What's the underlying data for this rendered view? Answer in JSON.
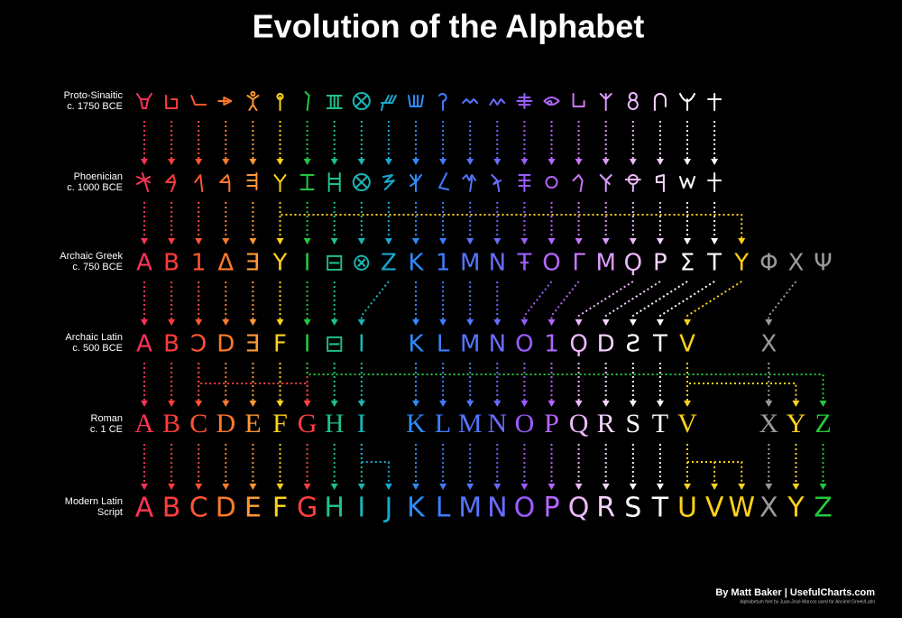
{
  "header": {
    "title": "Evolution of the Alphabet"
  },
  "rows": [
    {
      "label": [
        "Proto-Sinaitic",
        "c. 1750 BCE"
      ],
      "colors": [
        "#ff3355",
        "#ff3c3c",
        "#ff5533",
        "#ff7a2a",
        "#ff9933",
        "#ffd21a",
        "#22c83c",
        "#1fbf8f",
        "#1cb5b5",
        "#19a8cf",
        "#2f8cff",
        "#3f7cff",
        "#5575ff",
        "#6a6cff",
        "#9a5cff",
        "#b466ff",
        "#cc77ff",
        "#dd99ff",
        "#eeb8ff",
        "#f5d5ff",
        "#ffffff",
        "#ffffff"
      ]
    },
    {
      "label": [
        "Phoenician",
        "c. 1000 BCE"
      ],
      "colors": [
        "#ff3355",
        "#ff3c3c",
        "#ff5533",
        "#ff7a2a",
        "#ff9933",
        "#ffd21a",
        "#22c83c",
        "#1fbf8f",
        "#1cb5b5",
        "#19a8cf",
        "#2f8cff",
        "#3f7cff",
        "#5575ff",
        "#6a6cff",
        "#9a5cff",
        "#b466ff",
        "#cc77ff",
        "#dd99ff",
        "#eeb8ff",
        "#f5d5ff",
        "#ffffff",
        "#ffffff"
      ]
    },
    {
      "label": [
        "Archaic Greek",
        "c. 750 BCE"
      ],
      "glyphs": [
        "A",
        "B",
        "1",
        "Δ",
        "Ǝ",
        "Y",
        "I",
        "⊟",
        "⊗",
        "Z",
        "K",
        "1",
        "M",
        "N",
        "Ŧ",
        "O",
        "Γ",
        "M",
        "Ϙ",
        "Ρ",
        "Σ",
        "T",
        "Y",
        "Φ",
        "X",
        "Ψ"
      ],
      "colors": [
        "#ff3355",
        "#ff3c3c",
        "#ff5533",
        "#ff7a2a",
        "#ff9933",
        "#ffd21a",
        "#22c83c",
        "#1fbf8f",
        "#1cb5b5",
        "#19a8cf",
        "#2f8cff",
        "#3f7cff",
        "#5575ff",
        "#6a6cff",
        "#9a5cff",
        "#b466ff",
        "#cc77ff",
        "#dd99ff",
        "#eeb8ff",
        "#f5d5ff",
        "#ffffff",
        "#ffffff",
        "#ffd21a",
        "#9a9a9a",
        "#9a9a9a",
        "#9a9a9a"
      ]
    },
    {
      "label": [
        "Archaic Latin",
        "c. 500 BCE"
      ],
      "glyphs": [
        "A",
        "B",
        "Ɔ",
        "D",
        "Ǝ",
        "F",
        "I",
        "⊟",
        "I",
        null,
        "K",
        "L",
        "M",
        "N",
        "O",
        "1",
        "Ϙ",
        "D",
        "Ƨ",
        "T",
        "V",
        null,
        null,
        "X",
        null,
        null
      ],
      "colors": [
        "#ff3355",
        "#ff3c3c",
        "#ff5533",
        "#ff7a2a",
        "#ff9933",
        "#ffd21a",
        "#22c83c",
        "#1fbf8f",
        "#1cb5b5",
        null,
        "#2f8cff",
        "#3f7cff",
        "#5575ff",
        "#6a6cff",
        "#9a5cff",
        "#b466ff",
        "#eeb8ff",
        "#f5d5ff",
        "#ffffff",
        "#ffffff",
        "#ffd21a",
        null,
        null,
        "#9a9a9a",
        null,
        null
      ]
    },
    {
      "label": [
        "Roman",
        "c. 1 CE"
      ],
      "glyphs": [
        "A",
        "B",
        "C",
        "D",
        "E",
        "F",
        "G",
        "H",
        "I",
        null,
        "K",
        "L",
        "M",
        "N",
        "O",
        "P",
        "Q",
        "R",
        "S",
        "T",
        "V",
        null,
        null,
        "X",
        "Y",
        "Z"
      ],
      "colors": [
        "#ff3355",
        "#ff3c3c",
        "#ff5533",
        "#ff7a2a",
        "#ff9933",
        "#ffd21a",
        "#ff4040",
        "#1fbf8f",
        "#1cb5b5",
        null,
        "#2f8cff",
        "#3f7cff",
        "#5575ff",
        "#6a6cff",
        "#9a5cff",
        "#b466ff",
        "#eeb8ff",
        "#f5d5ff",
        "#ffffff",
        "#ffffff",
        "#ffd21a",
        null,
        null,
        "#9a9a9a",
        "#ffd21a",
        "#22c83c"
      ]
    },
    {
      "label": [
        "Modern Latin",
        "Script"
      ],
      "glyphs": [
        "A",
        "B",
        "C",
        "D",
        "E",
        "F",
        "G",
        "H",
        "I",
        "J",
        "K",
        "L",
        "M",
        "N",
        "O",
        "P",
        "Q",
        "R",
        "S",
        "T",
        "U",
        "V",
        "W",
        "X",
        "Y",
        "Z"
      ],
      "colors": [
        "#ff3355",
        "#ff3c3c",
        "#ff5533",
        "#ff7a2a",
        "#ff9933",
        "#ffd21a",
        "#ff4040",
        "#1fbf8f",
        "#1cb5b5",
        "#19a8cf",
        "#2f8cff",
        "#3f7cff",
        "#5575ff",
        "#6a6cff",
        "#9a5cff",
        "#b466ff",
        "#eeb8ff",
        "#f5d5ff",
        "#ffffff",
        "#ffffff",
        "#ffd21a",
        "#ffd21a",
        "#ffd21a",
        "#9a9a9a",
        "#ffd21a",
        "#22c83c"
      ]
    }
  ],
  "footer": {
    "credit": "By Matt Baker | UsefulCharts.com",
    "note": "Alphabetum font by Juan-José Marcos used for Ancient Greek/Latin"
  }
}
